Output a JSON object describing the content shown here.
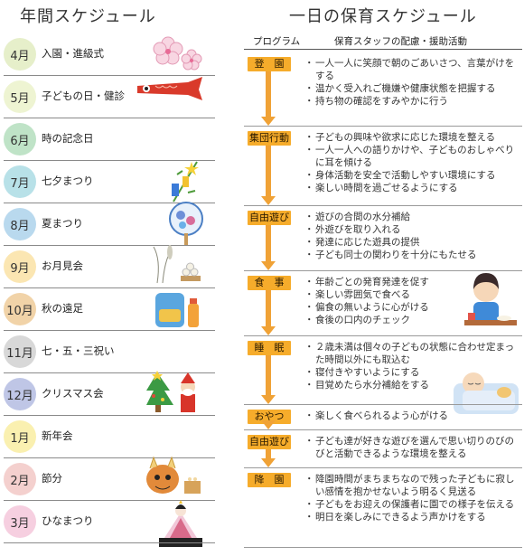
{
  "left": {
    "title": "年間スケジュール",
    "months": [
      {
        "month": "4月",
        "event": "入園・進級式",
        "color": "#e6efca",
        "deco": "sakura-icon"
      },
      {
        "month": "5月",
        "event": "子どもの日・健診",
        "color": "#eef4d2",
        "deco": "koinobori-icon"
      },
      {
        "month": "6月",
        "event": "時の記念日",
        "color": "#bfe3c7",
        "deco": ""
      },
      {
        "month": "7月",
        "event": "七夕まつり",
        "color": "#b8e1e8",
        "deco": "tanabata-icon"
      },
      {
        "month": "8月",
        "event": "夏まつり",
        "color": "#b9d9ee",
        "deco": "uchiwa-icon"
      },
      {
        "month": "9月",
        "event": "お月見会",
        "color": "#fbe6b2",
        "deco": "tsukimi-icon"
      },
      {
        "month": "10月",
        "event": "秋の遠足",
        "color": "#f1d3a8",
        "deco": "backpack-icon"
      },
      {
        "month": "11月",
        "event": "七・五・三祝い",
        "color": "#d8d8d8",
        "deco": ""
      },
      {
        "month": "12月",
        "event": "クリスマス会",
        "color": "#bfc6e6",
        "deco": "christmas-icon"
      },
      {
        "month": "1月",
        "event": "新年会",
        "color": "#faf0b0",
        "deco": ""
      },
      {
        "month": "2月",
        "event": "節分",
        "color": "#f4d0ce",
        "deco": "oni-icon"
      },
      {
        "month": "3月",
        "event": "ひなまつり",
        "color": "#f6cfe0",
        "deco": "hina-icon"
      }
    ]
  },
  "right": {
    "title": "一日の保育スケジュール",
    "header": {
      "program": "プログラム",
      "staff": "保育スタッフの配慮・援助活動"
    },
    "sections": [
      {
        "label": "登　園",
        "items": [
          "一人一人に笑顔で朝のごあいさつ、言葉がけをする",
          "温かく受入れご機嫌や健康状態を把握する",
          "持ち物の確認をすみやかに行う"
        ]
      },
      {
        "label": "集団行動",
        "items": [
          "子どもの興味や欲求に応じた環境を整える",
          "一人一人への語りかけや、子どものおしゃべりに耳を傾ける",
          "身体活動を安全で活動しやすい環境にする",
          "楽しい時間を過ごせるようにする"
        ]
      },
      {
        "label": "自由遊び",
        "items": [
          "遊びの合間の水分補給",
          "外遊びを取り入れる",
          "発達に応じた遊具の提供",
          "子ども同士の関わりを十分にもたせる"
        ]
      },
      {
        "label": "食　事",
        "items": [
          "年齢ごとの発育発達を促す",
          "楽しい雰囲気で食べる",
          "偏食の無いように心がける",
          "食後の口内のチェック"
        ]
      },
      {
        "label": "睡　眠",
        "items": [
          "２歳未満は個々の子どもの状態に合わせ定まった時間以外にも取込む",
          "寝付きやすいようにする",
          "目覚めたら水分補給をする"
        ]
      },
      {
        "label": "おやつ",
        "items": [
          "楽しく食べられるよう心がける"
        ]
      },
      {
        "label": "自由遊び",
        "items": [
          "子ども達が好きな遊びを選んで思い切りのびのびと活動できるような環境を整える"
        ]
      },
      {
        "label": "降　園",
        "items": [
          "降園時間がまちまちなので残った子どもに寂しい感情を抱かせないよう明るく見送る",
          "子どもをお迎えの保護者に園での様子を伝える",
          "明日を楽しみにできるよう声かけをする"
        ]
      }
    ]
  }
}
